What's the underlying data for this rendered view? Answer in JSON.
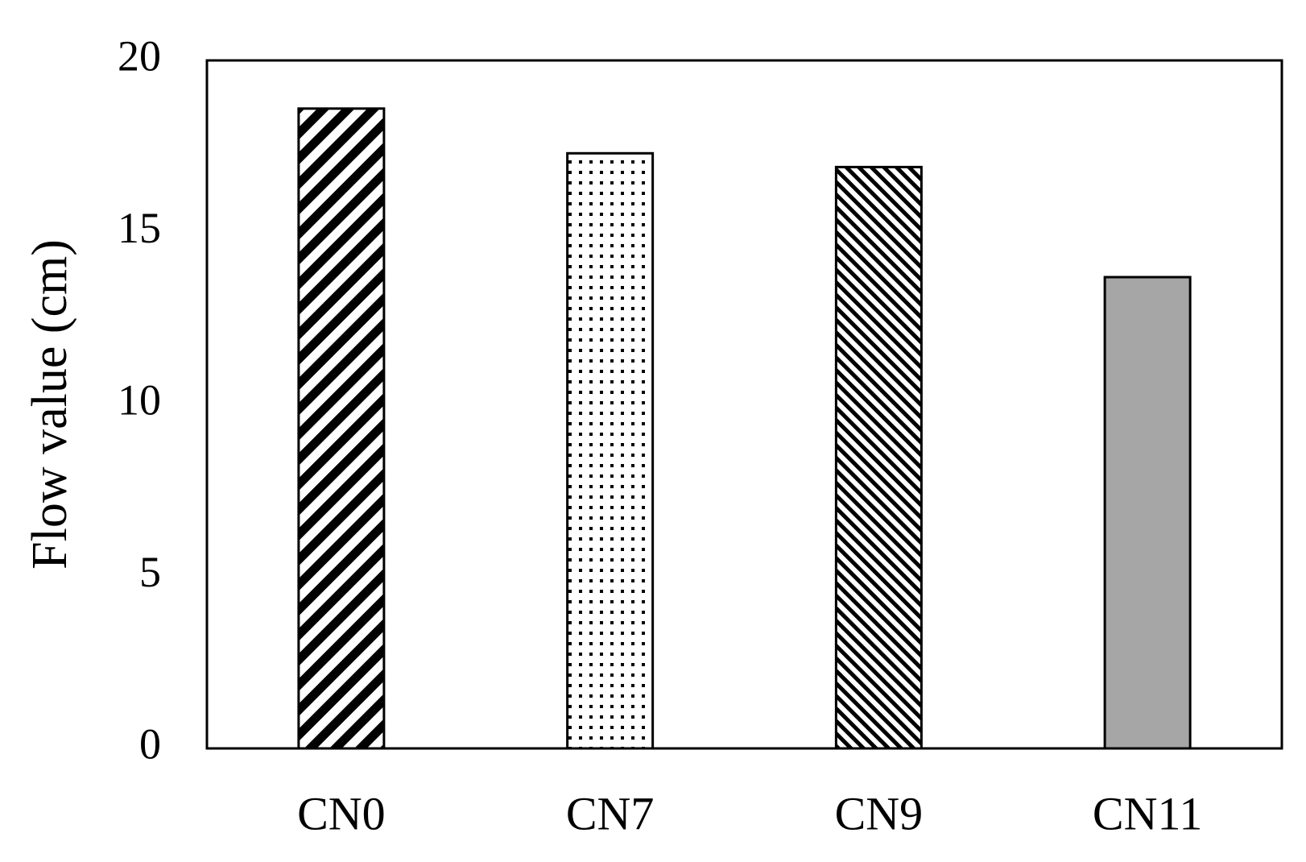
{
  "chart_data": {
    "type": "bar",
    "y_label": "Flow value (cm)",
    "categories": [
      "CN0",
      "CN7",
      "CN9",
      "CN11"
    ],
    "values": [
      18.6,
      17.3,
      16.9,
      13.7
    ],
    "ylim": [
      0,
      20
    ],
    "yticks": [
      0,
      5,
      10,
      15,
      20
    ],
    "grid": false
  }
}
